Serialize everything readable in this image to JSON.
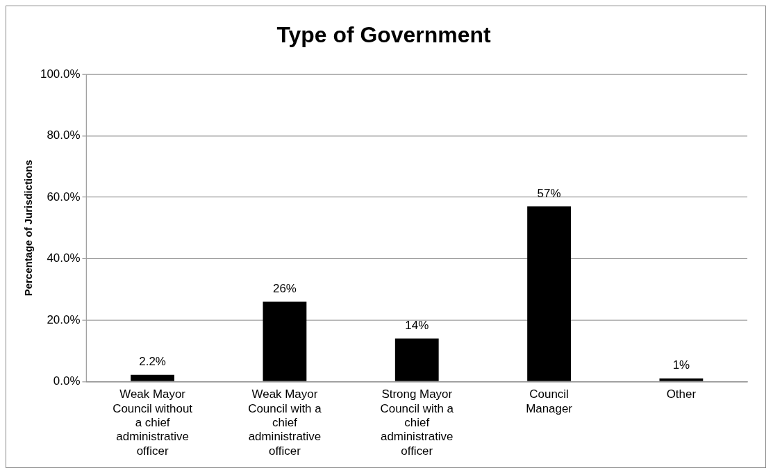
{
  "chart_data": {
    "type": "bar",
    "title": "Type of Government",
    "ylabel": "Percentage of Jurisdictions",
    "categories": [
      "Weak Mayor Council without a chief administrative officer",
      "Weak Mayor Council with a chief administrative officer",
      "Strong Mayor Council with a chief administrative officer",
      "Council Manager",
      "Other"
    ],
    "values": [
      2.2,
      26,
      14,
      57,
      1
    ],
    "value_labels": [
      "2.2%",
      "26%",
      "14%",
      "57%",
      "1%"
    ],
    "color": "#000000",
    "ylim": [
      0,
      100
    ],
    "yticks": [
      {
        "value": 0,
        "label": "0.0%"
      },
      {
        "value": 20,
        "label": "20.0%"
      },
      {
        "value": 40,
        "label": "40.0%"
      },
      {
        "value": 60,
        "label": "60.0%"
      },
      {
        "value": 80,
        "label": "80.0%"
      },
      {
        "value": 100,
        "label": "100.0%"
      }
    ],
    "grid": "y",
    "legend": false
  }
}
